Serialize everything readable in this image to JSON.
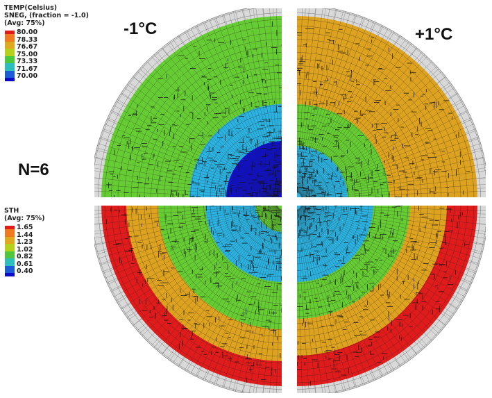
{
  "labels": {
    "left_condition": "-1°C",
    "right_condition": "+1°C",
    "case": "N=6"
  },
  "legend_temp": {
    "title_lines": [
      "TEMP(Celsius)",
      "SNEG, (fraction = -1.0)",
      "(Avg: 75%)"
    ],
    "ticks": [
      "80.00",
      "78.33",
      "76.67",
      "75.00",
      "73.33",
      "71.67",
      "70.00"
    ],
    "colors": [
      "#e31a1c",
      "#f07a1f",
      "#e0a81e",
      "#b5d11b",
      "#4cc83a",
      "#2bc0bd",
      "#1c5cd9",
      "#0a0ac8"
    ]
  },
  "legend_sth": {
    "title_lines": [
      "STH",
      "(Avg: 75%)"
    ],
    "ticks": [
      "1.65",
      "1.44",
      "1.23",
      "1.02",
      "0.82",
      "0.61",
      "0.40"
    ],
    "colors": [
      "#e31a1c",
      "#f07a1f",
      "#e0a81e",
      "#b5d11b",
      "#4cc83a",
      "#2bc0bd",
      "#1c5cd9",
      "#0a0ac8"
    ]
  },
  "colors": {
    "red": "#e01b1b",
    "orange": "#dda21f",
    "green": "#66cc33",
    "cyan": "#2cb2e0",
    "blue": "#1010c8",
    "rim": "#d9d9d9",
    "mesh": "#222222"
  }
}
